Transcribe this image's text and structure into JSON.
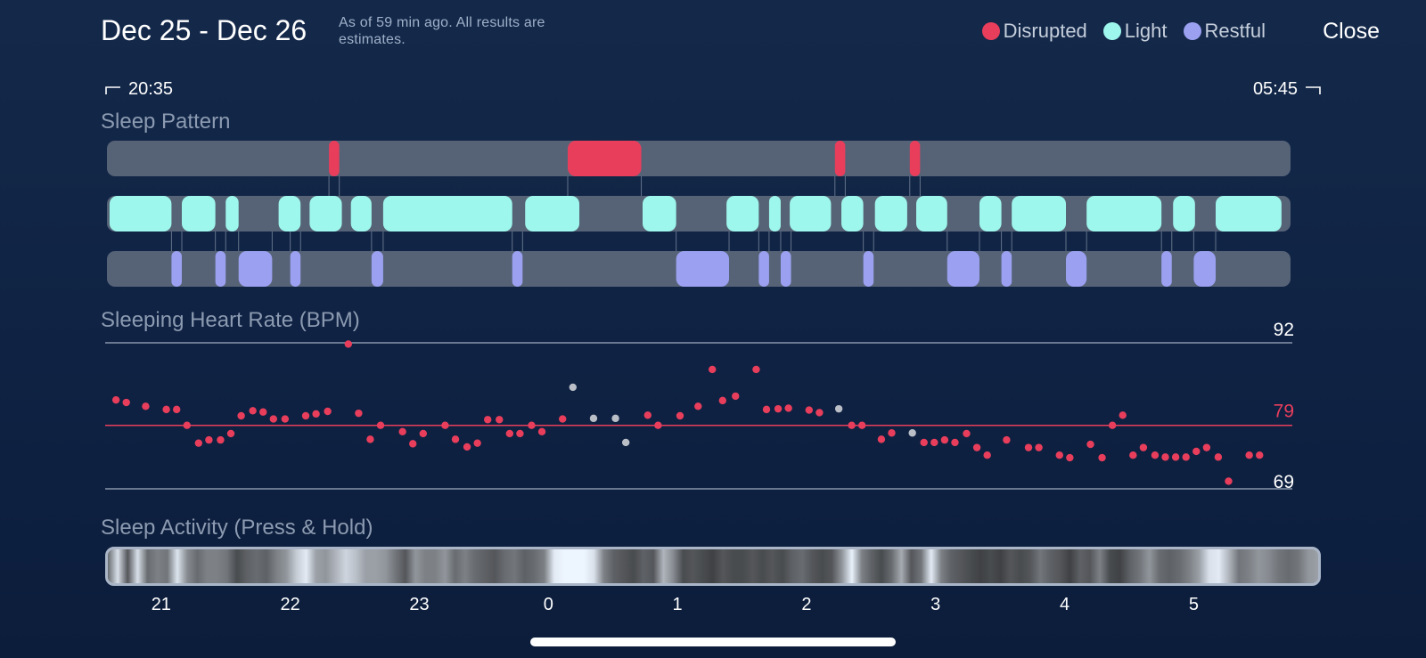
{
  "header": {
    "title": "Dec 25 - Dec 26",
    "subtitle": "As of 59 min ago. All results are estimates.",
    "close_label": "Close"
  },
  "legend": [
    {
      "label": "Disrupted",
      "color": "#e83e5c"
    },
    {
      "label": "Light",
      "color": "#9ef7ec"
    },
    {
      "label": "Restful",
      "color": "#9ba1f0"
    }
  ],
  "time_range": {
    "start": "20:35",
    "end": "05:45"
  },
  "sections": {
    "pattern": "Sleep Pattern",
    "heart_rate": "Sleeping Heart Rate (BPM)",
    "activity": "Sleep Activity (Press & Hold)"
  },
  "colors": {
    "disrupted": "#e83e5c",
    "light": "#9ef7ec",
    "restful": "#9ba1f0",
    "track": "#566377",
    "outlier": "#b9bec7",
    "avg_line": "#e83e5c",
    "ref_line": "#8896aa"
  },
  "chart_data": {
    "type": "scatter",
    "title": "Sleeping Heart Rate (BPM)",
    "x_unit": "hour of night (20.583 = 20:35, 29.75 = 05:45)",
    "xlim": [
      20.58,
      29.75
    ],
    "ylim": [
      69,
      92
    ],
    "reference_values": {
      "max": 92,
      "avg": 79,
      "min": 69
    },
    "reference_labels": {
      "max": "92",
      "avg": "79",
      "min": "69"
    },
    "x_ticks": [
      {
        "value": 21,
        "label": "21"
      },
      {
        "value": 22,
        "label": "22"
      },
      {
        "value": 23,
        "label": "23"
      },
      {
        "value": 24,
        "label": "0"
      },
      {
        "value": 25,
        "label": "1"
      },
      {
        "value": 26,
        "label": "2"
      },
      {
        "value": 27,
        "label": "3"
      },
      {
        "value": 28,
        "label": "4"
      },
      {
        "value": 29,
        "label": "5"
      }
    ],
    "sleep_pattern": {
      "disrupted": [
        [
          22.3,
          22.38
        ],
        [
          24.15,
          24.72
        ],
        [
          26.22,
          26.3
        ],
        [
          26.8,
          26.88
        ]
      ],
      "light": [
        [
          20.6,
          21.08
        ],
        [
          21.16,
          21.42
        ],
        [
          21.5,
          21.6
        ],
        [
          21.91,
          22.08
        ],
        [
          22.15,
          22.4
        ],
        [
          22.47,
          22.63
        ],
        [
          22.72,
          23.72
        ],
        [
          23.82,
          24.24
        ],
        [
          24.73,
          24.99
        ],
        [
          25.38,
          25.63
        ],
        [
          25.71,
          25.8
        ],
        [
          25.87,
          26.19
        ],
        [
          26.27,
          26.44
        ],
        [
          26.53,
          26.78
        ],
        [
          26.85,
          27.09
        ],
        [
          27.34,
          27.51
        ],
        [
          27.59,
          28.01
        ],
        [
          28.17,
          28.75
        ],
        [
          28.84,
          29.01
        ],
        [
          29.17,
          29.68
        ]
      ],
      "restful": [
        [
          21.08,
          21.16
        ],
        [
          21.42,
          21.5
        ],
        [
          21.6,
          21.86
        ],
        [
          22.0,
          22.08
        ],
        [
          22.63,
          22.72
        ],
        [
          23.72,
          23.8
        ],
        [
          24.99,
          25.4
        ],
        [
          25.63,
          25.71
        ],
        [
          25.8,
          25.88
        ],
        [
          26.44,
          26.52
        ],
        [
          27.09,
          27.34
        ],
        [
          27.51,
          27.59
        ],
        [
          28.01,
          28.17
        ],
        [
          28.75,
          28.83
        ],
        [
          29.0,
          29.17
        ]
      ]
    },
    "series": [
      {
        "name": "heart_rate",
        "points": [
          [
            20.65,
            83
          ],
          [
            20.73,
            82.6
          ],
          [
            20.88,
            82
          ],
          [
            21.04,
            81.5
          ],
          [
            21.12,
            81.5
          ],
          [
            21.2,
            79
          ],
          [
            21.29,
            76.2
          ],
          [
            21.37,
            76.7
          ],
          [
            21.46,
            76.7
          ],
          [
            21.54,
            77.7
          ],
          [
            21.62,
            80.5
          ],
          [
            21.71,
            81.3
          ],
          [
            21.79,
            81.1
          ],
          [
            21.87,
            80
          ],
          [
            21.96,
            80
          ],
          [
            22.12,
            80.5
          ],
          [
            22.2,
            80.8
          ],
          [
            22.29,
            81.2
          ],
          [
            22.45,
            91.8
          ],
          [
            22.53,
            80.9
          ],
          [
            22.62,
            76.8
          ],
          [
            22.7,
            79
          ],
          [
            22.87,
            78
          ],
          [
            22.95,
            76.1
          ],
          [
            23.03,
            77.7
          ],
          [
            23.2,
            79
          ],
          [
            23.28,
            76.8
          ],
          [
            23.37,
            75.6
          ],
          [
            23.45,
            76.2
          ],
          [
            23.53,
            79.9
          ],
          [
            23.62,
            79.9
          ],
          [
            23.7,
            77.7
          ],
          [
            23.78,
            77.7
          ],
          [
            23.87,
            79
          ],
          [
            23.95,
            78
          ],
          [
            24.11,
            80
          ],
          [
            24.77,
            80.6
          ],
          [
            24.85,
            79
          ],
          [
            25.02,
            80.5
          ],
          [
            25.16,
            82
          ],
          [
            25.27,
            87.8
          ],
          [
            25.35,
            82.9
          ],
          [
            25.45,
            83.6
          ],
          [
            25.61,
            87.8
          ],
          [
            25.69,
            81.5
          ],
          [
            25.78,
            81.6
          ],
          [
            25.86,
            81.7
          ],
          [
            26.02,
            81.4
          ],
          [
            26.1,
            81
          ],
          [
            26.35,
            79
          ],
          [
            26.43,
            79
          ],
          [
            26.58,
            76.8
          ],
          [
            26.66,
            77.8
          ],
          [
            26.91,
            76.3
          ],
          [
            26.99,
            76.3
          ],
          [
            27.07,
            76.7
          ],
          [
            27.15,
            76.3
          ],
          [
            27.24,
            77.7
          ],
          [
            27.32,
            75.5
          ],
          [
            27.4,
            74.3
          ],
          [
            27.55,
            76.7
          ],
          [
            27.72,
            75.5
          ],
          [
            27.8,
            75.5
          ],
          [
            27.96,
            74.3
          ],
          [
            28.04,
            73.9
          ],
          [
            28.2,
            76
          ],
          [
            28.29,
            73.9
          ],
          [
            28.37,
            79
          ],
          [
            28.45,
            80.6
          ],
          [
            28.53,
            74.3
          ],
          [
            28.61,
            75.5
          ],
          [
            28.7,
            74.3
          ],
          [
            28.78,
            74
          ],
          [
            28.86,
            74
          ],
          [
            28.94,
            74
          ],
          [
            29.02,
            74.9
          ],
          [
            29.1,
            75.5
          ],
          [
            29.19,
            74
          ],
          [
            29.27,
            70.2
          ],
          [
            29.43,
            74.3
          ],
          [
            29.51,
            74.3
          ]
        ]
      },
      {
        "name": "outliers",
        "points": [
          [
            24.19,
            85
          ],
          [
            24.35,
            80.1
          ],
          [
            24.52,
            80.1
          ],
          [
            24.6,
            76.3
          ],
          [
            26.25,
            81.6
          ],
          [
            26.82,
            77.8
          ]
        ]
      }
    ],
    "sleep_activity": [
      0.35,
      0.9,
      0.25,
      0.9,
      0.35,
      0.45,
      0.4,
      0.92,
      0.5,
      0.35,
      0.45,
      0.45,
      0.4,
      0.2,
      0.3,
      0.35,
      0.3,
      0.45,
      0.55,
      0.8,
      0.95,
      0.6,
      0.55,
      0.7,
      0.85,
      0.75,
      0.6,
      0.6,
      0.55,
      0.4,
      0.25,
      0.55,
      0.45,
      0.45,
      0.55,
      0.35,
      0.45,
      0.35,
      0.3,
      0.25,
      0.35,
      0.4,
      0.3,
      0.35,
      0.45,
      0.95,
      1,
      1,
      1,
      0.9,
      0.45,
      0.3,
      0.25,
      0.2,
      0.3,
      0.25,
      0.7,
      0.5,
      0.2,
      0.25,
      0.2,
      0.15,
      0.25,
      0.2,
      0.2,
      0.25,
      0.2,
      0.25,
      0.2,
      0.3,
      0.35,
      0.25,
      0.2,
      0.25,
      0.55,
      0.98,
      0.45,
      0.3,
      0.2,
      0.35,
      0.65,
      0.25,
      0.4,
      0.95,
      0.45,
      0.3,
      0.25,
      0.2,
      0.15,
      0.2,
      0.15,
      0.25,
      0.2,
      0.25,
      0.4,
      0.3,
      0.25,
      0.15,
      0.3,
      0.25,
      0.45,
      0.2,
      0.15,
      0.3,
      0.4,
      0.55,
      0.35,
      0.3,
      0.35,
      0.45,
      0.6,
      0.9,
      0.95,
      0.7,
      0.4,
      0.45,
      0.55,
      0.5,
      0.4,
      0.35,
      0.4,
      0.55,
      0.6
    ]
  }
}
